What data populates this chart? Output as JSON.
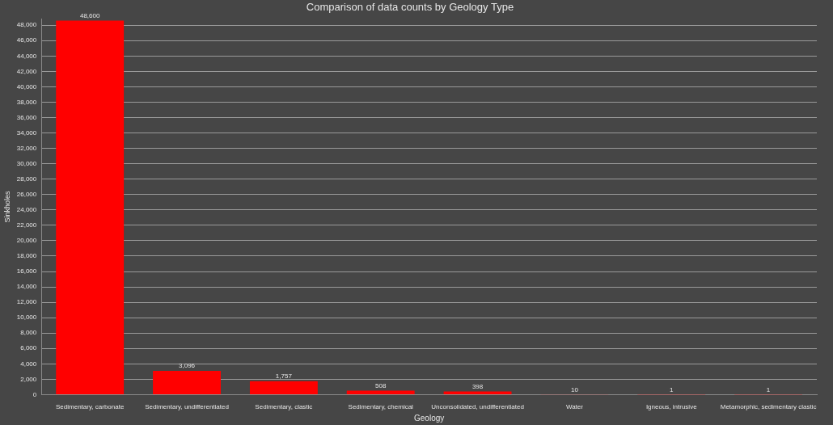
{
  "chart_data": {
    "type": "bar",
    "title": "Comparison of data counts by Geology Type",
    "xlabel": "Geology",
    "ylabel": "Sinkholes",
    "categories": [
      "Sedimentary, carbonate",
      "Sedimentary, undifferentiated",
      "Sedimentary, clastic",
      "Sedimentary, chemical",
      "Unconsolidated, undifferentiated",
      "Water",
      "Igneous, intrusive",
      "Metamorphic, sedimentary clastic"
    ],
    "values": [
      48600,
      3096,
      1757,
      508,
      398,
      10,
      1,
      1
    ],
    "color": "#ff0000",
    "value_labels": [
      "48,600",
      "3,096",
      "1,757",
      "508",
      "398",
      "10",
      "1",
      "1"
    ],
    "ylim": [
      0,
      48800
    ],
    "yticks": [
      0,
      {
        "value": 2000,
        "label": "2,000"
      },
      {
        "value": 4000,
        "label": "4,000"
      },
      {
        "value": 6000,
        "label": "6,000"
      },
      {
        "value": 8000,
        "label": "8,000"
      },
      {
        "value": 10000,
        "label": "10,000"
      },
      {
        "value": 12000,
        "label": "12,000"
      },
      {
        "value": 14000,
        "label": "14,000"
      },
      {
        "value": 16000,
        "label": "16,000"
      },
      {
        "value": 18000,
        "label": "18,000"
      },
      {
        "value": 20000,
        "label": "20,000"
      },
      {
        "value": 22000,
        "label": "22,000"
      },
      {
        "value": 24000,
        "label": "24,000"
      },
      {
        "value": 26000,
        "label": "26,000"
      },
      {
        "value": 28000,
        "label": "28,000"
      },
      {
        "value": 30000,
        "label": "30,000"
      },
      {
        "value": 32000,
        "label": "32,000"
      },
      {
        "value": 34000,
        "label": "34,000"
      },
      {
        "value": 36000,
        "label": "36,000"
      },
      {
        "value": 38000,
        "label": "38,000"
      },
      {
        "value": 40000,
        "label": "40,000"
      },
      {
        "value": 42000,
        "label": "42,000"
      },
      {
        "value": 44000,
        "label": "44,000"
      },
      {
        "value": 46000,
        "label": "46,000"
      },
      {
        "value": 48000,
        "label": "48,000"
      }
    ],
    "grid": "y",
    "legend": false
  }
}
